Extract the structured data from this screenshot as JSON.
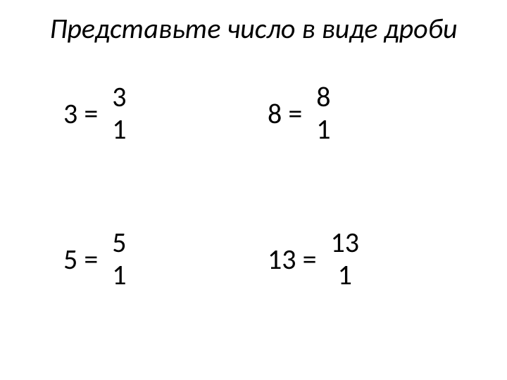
{
  "title": "Представьте число в виде дроби",
  "items": [
    {
      "whole": "3 =",
      "numerator": "3",
      "denominator": "1"
    },
    {
      "whole": "8 =",
      "numerator": "8",
      "denominator": "1"
    },
    {
      "whole": "5 =",
      "numerator": "5",
      "denominator": "1"
    },
    {
      "whole": "13 =",
      "numerator": "13",
      "denominator": "1"
    }
  ],
  "styling": {
    "background_color": "#ffffff",
    "text_color": "#000000",
    "title_fontsize": 40,
    "body_fontsize": 40,
    "title_style": "italic",
    "font_family": "Calibri"
  }
}
